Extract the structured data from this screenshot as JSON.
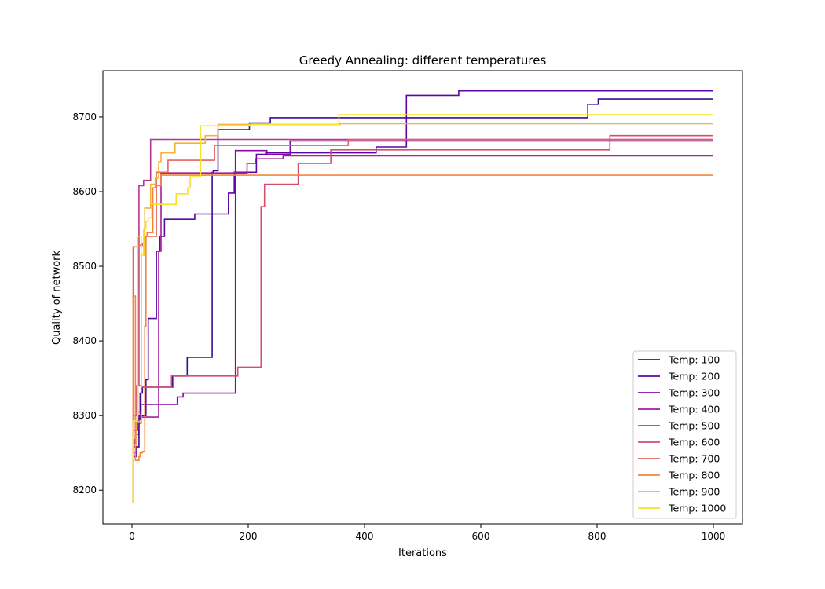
{
  "chart_data": {
    "type": "line",
    "title": "Greedy Annealing: different temperatures",
    "xlabel": "Iterations",
    "ylabel": "Quality of network",
    "xlim": [
      -50,
      1050
    ],
    "ylim": [
      8155,
      8762
    ],
    "xticks": [
      0,
      200,
      400,
      600,
      800,
      1000
    ],
    "yticks": [
      8200,
      8300,
      8400,
      8500,
      8600,
      8700
    ],
    "grid": false,
    "legend_position": "lower-right",
    "step": true,
    "series": [
      {
        "name": "Temp: 100",
        "color": "#3a0d98",
        "points": [
          [
            0,
            8185
          ],
          [
            2,
            8245
          ],
          [
            6,
            8245
          ],
          [
            8,
            8258
          ],
          [
            12,
            8295
          ],
          [
            14,
            8330
          ],
          [
            18,
            8338
          ],
          [
            22,
            8338
          ],
          [
            26,
            8338
          ],
          [
            40,
            8338
          ],
          [
            50,
            8338
          ],
          [
            60,
            8338
          ],
          [
            70,
            8353
          ],
          [
            90,
            8353
          ],
          [
            95,
            8378
          ],
          [
            136,
            8378
          ],
          [
            138,
            8626
          ],
          [
            140,
            8628
          ],
          [
            146,
            8628
          ],
          [
            148,
            8683
          ],
          [
            200,
            8683
          ],
          [
            202,
            8692
          ],
          [
            236,
            8692
          ],
          [
            238,
            8699
          ],
          [
            480,
            8699
          ],
          [
            780,
            8699
          ],
          [
            784,
            8717
          ],
          [
            800,
            8717
          ],
          [
            802,
            8724
          ],
          [
            1000,
            8724
          ]
        ]
      },
      {
        "name": "Temp: 200",
        "color": "#5c06a6",
        "points": [
          [
            0,
            8185
          ],
          [
            2,
            8258
          ],
          [
            6,
            8275
          ],
          [
            10,
            8275
          ],
          [
            12,
            8300
          ],
          [
            20,
            8300
          ],
          [
            24,
            8348
          ],
          [
            26,
            8348
          ],
          [
            28,
            8430
          ],
          [
            36,
            8430
          ],
          [
            40,
            8430
          ],
          [
            42,
            8520
          ],
          [
            48,
            8540
          ],
          [
            54,
            8540
          ],
          [
            56,
            8563
          ],
          [
            106,
            8563
          ],
          [
            108,
            8570
          ],
          [
            164,
            8570
          ],
          [
            166,
            8598
          ],
          [
            174,
            8598
          ],
          [
            176,
            8626
          ],
          [
            200,
            8626
          ],
          [
            212,
            8626
          ],
          [
            214,
            8650
          ],
          [
            226,
            8650
          ],
          [
            230,
            8652
          ],
          [
            280,
            8652
          ],
          [
            300,
            8652
          ],
          [
            390,
            8652
          ],
          [
            420,
            8660
          ],
          [
            470,
            8660
          ],
          [
            472,
            8729
          ],
          [
            560,
            8729
          ],
          [
            562,
            8735
          ],
          [
            1000,
            8735
          ]
        ]
      },
      {
        "name": "Temp: 300",
        "color": "#8609a6",
        "points": [
          [
            0,
            8185
          ],
          [
            2,
            8250
          ],
          [
            6,
            8250
          ],
          [
            8,
            8290
          ],
          [
            14,
            8290
          ],
          [
            16,
            8315
          ],
          [
            76,
            8315
          ],
          [
            78,
            8325
          ],
          [
            86,
            8325
          ],
          [
            88,
            8330
          ],
          [
            92,
            8330
          ],
          [
            96,
            8330
          ],
          [
            100,
            8330
          ],
          [
            102,
            8330
          ],
          [
            104,
            8330
          ],
          [
            150,
            8330
          ],
          [
            170,
            8330
          ],
          [
            176,
            8330
          ],
          [
            178,
            8655
          ],
          [
            230,
            8655
          ],
          [
            232,
            8650
          ],
          [
            270,
            8650
          ],
          [
            272,
            8668
          ],
          [
            1000,
            8668
          ]
        ]
      },
      {
        "name": "Temp: 400",
        "color": "#a21e9e",
        "points": [
          [
            0,
            8185
          ],
          [
            2,
            8258
          ],
          [
            4,
            8268
          ],
          [
            6,
            8300
          ],
          [
            10,
            8305
          ],
          [
            12,
            8305
          ],
          [
            14,
            8298
          ],
          [
            44,
            8298
          ],
          [
            46,
            8520
          ],
          [
            50,
            8625
          ],
          [
            60,
            8625
          ],
          [
            100,
            8625
          ],
          [
            146,
            8625
          ],
          [
            148,
            8625
          ],
          [
            196,
            8625
          ],
          [
            198,
            8638
          ],
          [
            210,
            8638
          ],
          [
            212,
            8644
          ],
          [
            250,
            8644
          ],
          [
            260,
            8648
          ],
          [
            1000,
            8648
          ]
        ]
      },
      {
        "name": "Temp: 500",
        "color": "#b43791",
        "points": [
          [
            0,
            8185
          ],
          [
            2,
            8280
          ],
          [
            6,
            8280
          ],
          [
            10,
            8340
          ],
          [
            12,
            8608
          ],
          [
            20,
            8615
          ],
          [
            30,
            8615
          ],
          [
            32,
            8670
          ],
          [
            100,
            8670
          ],
          [
            360,
            8670
          ],
          [
            380,
            8670
          ],
          [
            820,
            8670
          ],
          [
            1000,
            8670
          ]
        ]
      },
      {
        "name": "Temp: 600",
        "color": "#d54e6d",
        "points": [
          [
            0,
            8185
          ],
          [
            2,
            8300
          ],
          [
            6,
            8300
          ],
          [
            8,
            8340
          ],
          [
            12,
            8340
          ],
          [
            16,
            8338
          ],
          [
            66,
            8338
          ],
          [
            68,
            8353
          ],
          [
            180,
            8353
          ],
          [
            182,
            8365
          ],
          [
            220,
            8365
          ],
          [
            222,
            8580
          ],
          [
            226,
            8580
          ],
          [
            228,
            8610
          ],
          [
            284,
            8610
          ],
          [
            286,
            8638
          ],
          [
            340,
            8638
          ],
          [
            342,
            8656
          ],
          [
            820,
            8656
          ],
          [
            822,
            8675
          ],
          [
            1000,
            8675
          ]
        ]
      },
      {
        "name": "Temp: 700",
        "color": "#e0665b",
        "points": [
          [
            0,
            8185
          ],
          [
            2,
            8526
          ],
          [
            10,
            8526
          ],
          [
            12,
            8528
          ],
          [
            16,
            8528
          ],
          [
            18,
            8530
          ],
          [
            24,
            8540
          ],
          [
            40,
            8540
          ],
          [
            42,
            8626
          ],
          [
            60,
            8626
          ],
          [
            62,
            8642
          ],
          [
            140,
            8642
          ],
          [
            142,
            8662
          ],
          [
            370,
            8662
          ],
          [
            372,
            8670
          ],
          [
            1000,
            8670
          ]
        ]
      },
      {
        "name": "Temp: 800",
        "color": "#f5853c",
        "points": [
          [
            0,
            8185
          ],
          [
            2,
            8460
          ],
          [
            4,
            8460
          ],
          [
            6,
            8240
          ],
          [
            10,
            8240
          ],
          [
            12,
            8245
          ],
          [
            14,
            8250
          ],
          [
            18,
            8252
          ],
          [
            20,
            8252
          ],
          [
            22,
            8420
          ],
          [
            24,
            8540
          ],
          [
            26,
            8545
          ],
          [
            36,
            8605
          ],
          [
            40,
            8608
          ],
          [
            50,
            8622
          ],
          [
            160,
            8622
          ],
          [
            220,
            8622
          ],
          [
            1000,
            8622
          ]
        ]
      },
      {
        "name": "Temp: 900",
        "color": "#f6b234",
        "points": [
          [
            0,
            8185
          ],
          [
            2,
            8260
          ],
          [
            6,
            8260
          ],
          [
            8,
            8292
          ],
          [
            14,
            8292
          ],
          [
            16,
            8515
          ],
          [
            22,
            8578
          ],
          [
            30,
            8578
          ],
          [
            32,
            8610
          ],
          [
            40,
            8618
          ],
          [
            46,
            8640
          ],
          [
            50,
            8652
          ],
          [
            72,
            8652
          ],
          [
            74,
            8665
          ],
          [
            124,
            8665
          ],
          [
            126,
            8675
          ],
          [
            146,
            8675
          ],
          [
            148,
            8690
          ],
          [
            356,
            8690
          ],
          [
            358,
            8691
          ],
          [
            1000,
            8691
          ]
        ]
      },
      {
        "name": "Temp: 1000",
        "color": "#f7e225",
        "points": [
          [
            0,
            8185
          ],
          [
            2,
            8293
          ],
          [
            6,
            8293
          ],
          [
            10,
            8540
          ],
          [
            16,
            8515
          ],
          [
            20,
            8550
          ],
          [
            24,
            8560
          ],
          [
            28,
            8565
          ],
          [
            34,
            8583
          ],
          [
            74,
            8583
          ],
          [
            76,
            8597
          ],
          [
            94,
            8597
          ],
          [
            96,
            8605
          ],
          [
            100,
            8620
          ],
          [
            116,
            8620
          ],
          [
            118,
            8688
          ],
          [
            200,
            8688
          ],
          [
            202,
            8690
          ],
          [
            354,
            8690
          ],
          [
            356,
            8703
          ],
          [
            1000,
            8703
          ]
        ]
      }
    ]
  }
}
